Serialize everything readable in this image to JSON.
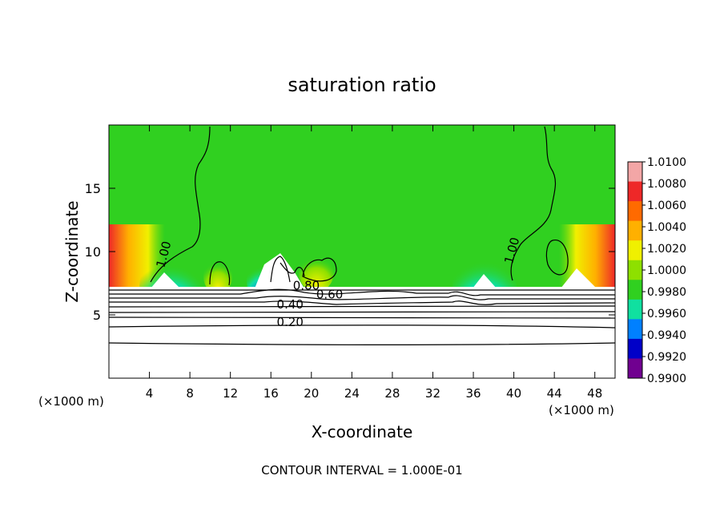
{
  "chart_data": {
    "type": "heatmap",
    "title": "saturation ratio",
    "xlabel": "X-coordinate",
    "ylabel": "Z-coordinate",
    "x_unit_label": "(×1000 m)",
    "xlim": [
      0,
      50
    ],
    "ylim": [
      0,
      20
    ],
    "x_ticks": [
      "4",
      "8",
      "12",
      "16",
      "20",
      "24",
      "28",
      "32",
      "36",
      "40",
      "44",
      "48"
    ],
    "y_ticks": [
      "5",
      "10",
      "15"
    ],
    "colorbar": {
      "labels": [
        "1.0100",
        "1.0080",
        "1.0060",
        "1.0040",
        "1.0020",
        "1.0000",
        "0.9980",
        "0.9960",
        "0.9940",
        "0.9920",
        "0.9900"
      ],
      "colors": [
        "#f3a6a6",
        "#ee2828",
        "#ff6a00",
        "#ffb000",
        "#f0f000",
        "#8ee000",
        "#30d020",
        "#10e0a0",
        "#0080ff",
        "#0000c8",
        "#700090"
      ]
    },
    "contour_labels": [
      {
        "text": "1.00",
        "x": 5.8,
        "z": 9.7
      },
      {
        "text": "1.00",
        "x": 40.2,
        "z": 10.0
      },
      {
        "text": "0.80",
        "x": 19.5,
        "z": 7.0
      },
      {
        "text": "0.60",
        "x": 21.8,
        "z": 6.3
      },
      {
        "text": "0.40",
        "x": 17.9,
        "z": 5.5
      },
      {
        "text": "0.20",
        "x": 17.9,
        "z": 4.1
      }
    ],
    "contour_interval_text": "CONTOUR INTERVAL = 1.000E-01"
  }
}
